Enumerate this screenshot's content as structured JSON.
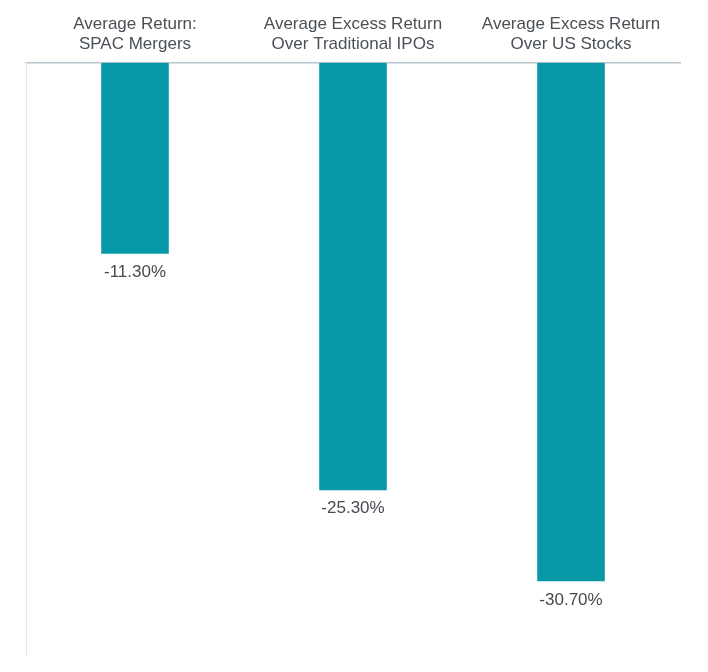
{
  "chart_data": {
    "type": "bar",
    "categories": [
      [
        "Average Return:",
        "SPAC Mergers"
      ],
      [
        "Average Excess Return",
        "Over Traditional IPOs"
      ],
      [
        "Average Excess Return",
        "Over US Stocks"
      ]
    ],
    "values": [
      -11.3,
      -25.3,
      -30.7
    ],
    "value_labels": [
      "-11.30%",
      "-25.30%",
      "-30.70%"
    ],
    "color": "#0899a8",
    "ylim": [
      -35,
      0
    ],
    "grid": false,
    "data_labels": true,
    "tick_labels": "x"
  }
}
